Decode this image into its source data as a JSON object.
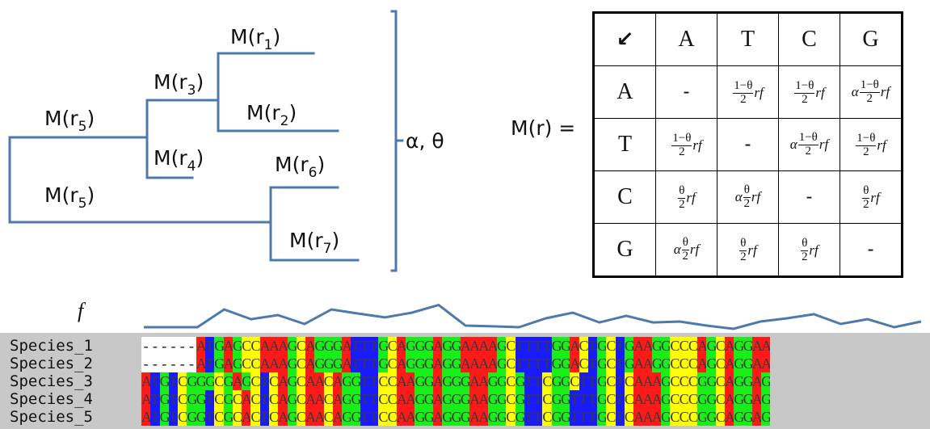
{
  "tree": {
    "labels": {
      "r1": {
        "main": "M(r",
        "sub": "1",
        "close": ")"
      },
      "r2": {
        "main": "M(r",
        "sub": "2",
        "close": ")"
      },
      "r3": {
        "main": "M(r",
        "sub": "3",
        "close": ")"
      },
      "r4": {
        "main": "M(r",
        "sub": "4",
        "close": ")"
      },
      "r5a": {
        "main": "M(r",
        "sub": "5",
        "close": ")"
      },
      "r5b": {
        "main": "M(r",
        "sub": "5",
        "close": ")"
      },
      "r6": {
        "main": "M(r",
        "sub": "6",
        "close": ")"
      },
      "r7": {
        "main": "M(r",
        "sub": "7",
        "close": ")"
      }
    },
    "params": "α, θ",
    "line_color": "#4f79ad"
  },
  "matrix": {
    "label": "M(r) =",
    "corner": "↙",
    "columns": [
      "A",
      "T",
      "C",
      "G"
    ],
    "rows": [
      {
        "name": "A",
        "cells": [
          {
            "type": "dash",
            "text": "-"
          },
          {
            "type": "frac",
            "alpha": "",
            "num": "1−θ",
            "den": "2",
            "tail": "rf"
          },
          {
            "type": "frac",
            "alpha": "",
            "num": "1−θ",
            "den": "2",
            "tail": "rf"
          },
          {
            "type": "frac",
            "alpha": "α",
            "num": "1−θ",
            "den": "2",
            "tail": "rf"
          }
        ]
      },
      {
        "name": "T",
        "cells": [
          {
            "type": "frac",
            "alpha": "",
            "num": "1−θ",
            "den": "2",
            "tail": "rf"
          },
          {
            "type": "dash",
            "text": "-"
          },
          {
            "type": "frac",
            "alpha": "α",
            "num": "1−θ",
            "den": "2",
            "tail": "rf"
          },
          {
            "type": "frac",
            "alpha": "",
            "num": "1−θ",
            "den": "2",
            "tail": "rf"
          }
        ]
      },
      {
        "name": "C",
        "cells": [
          {
            "type": "frac",
            "alpha": "",
            "num": "θ",
            "den": "2",
            "tail": "rf"
          },
          {
            "type": "frac",
            "alpha": "α",
            "num": "θ",
            "den": "2",
            "tail": "rf"
          },
          {
            "type": "dash",
            "text": "-"
          },
          {
            "type": "frac",
            "alpha": "",
            "num": "θ",
            "den": "2",
            "tail": "rf"
          }
        ]
      },
      {
        "name": "G",
        "cells": [
          {
            "type": "frac",
            "alpha": "α",
            "num": "θ",
            "den": "2",
            "tail": "rf"
          },
          {
            "type": "frac",
            "alpha": "",
            "num": "θ",
            "den": "2",
            "tail": "rf"
          },
          {
            "type": "frac",
            "alpha": "",
            "num": "θ",
            "den": "2",
            "tail": "rf"
          },
          {
            "type": "dash",
            "text": "-"
          }
        ]
      }
    ]
  },
  "rate_profile": {
    "label": "f",
    "values": [
      0,
      0,
      0,
      1,
      0.45,
      0.68,
      0.18,
      1,
      0.77,
      0.55,
      0.82,
      1.25,
      0.09,
      0.05,
      0,
      0.5,
      0.82,
      0.27,
      0.64,
      0.27,
      0.32,
      0.09,
      -0.09,
      0.32,
      0.5,
      0.73,
      0.18,
      0.45,
      0,
      0.32
    ]
  },
  "alignment": {
    "colors": {
      "A": "#ff1a1a",
      "T": "#1a1aff",
      "C": "#ffff00",
      "G": "#1aee1a",
      "gap": "#ffffff"
    },
    "rows": [
      {
        "name": "Species_1",
        "seq": "------ATGAGCCAAAGCAGGGATTTGCAGGGAGGAAAAGCTTTTGGACTGCTGAAGGCCCAGCAGGAA"
      },
      {
        "name": "Species_2",
        "seq": "------ATGAGCCAAAGCAGGGATTTGCAGGGAGGAAAAGCTTTTGGACTGCTGAAGGCCCAGCAGGAA"
      },
      {
        "name": "Species_3",
        "seq": "ATGTCGGGCGAGCTCAGCAACAGGTTCCAAGGAGGGAAGGCGTTCGGCTTGCTCAAAGCCCGGCAGGAG"
      },
      {
        "name": "Species_4",
        "seq": "ATGTCGGTCGCACTCAGCAACAGGTTCCAAGGAGGGAAGGCGTTCGGTTTGCTCAAAGCCCGGCAGGAG"
      },
      {
        "name": "Species_5",
        "seq": "ATGTCGGTCGCACTCAGCAACAGGTTCCAAGGAGGGAAGGCGTTCGGTTTGCTCAAAGCCCGGCAGGAG"
      }
    ]
  }
}
